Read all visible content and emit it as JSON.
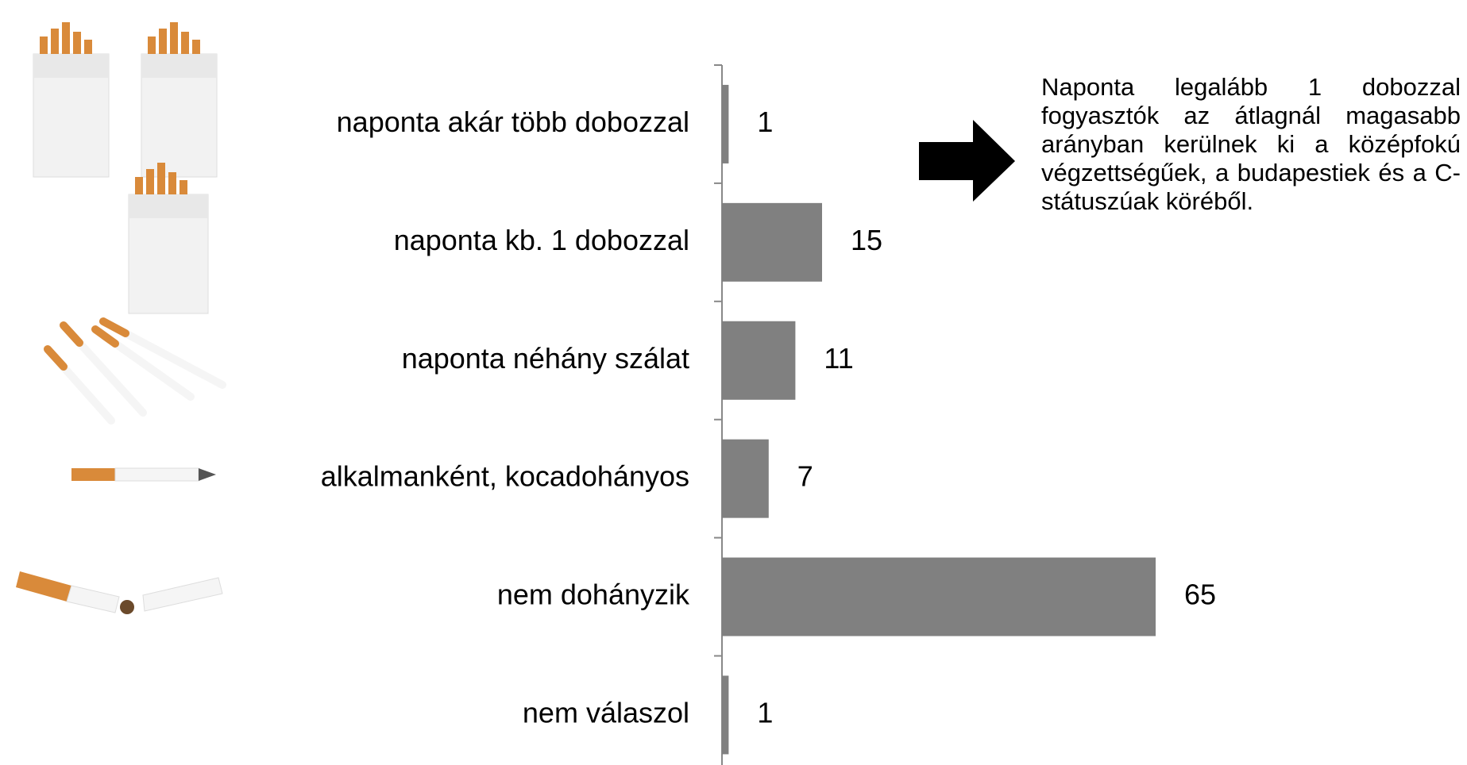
{
  "chart_data": {
    "type": "hbar",
    "categories": [
      "naponta akár több dobozzal",
      "naponta kb. 1 dobozzal",
      "naponta néhány szálat",
      "alkalmanként, kocadohányos",
      "nem dohányzik",
      "nem válaszol"
    ],
    "values": [
      1,
      15,
      11,
      7,
      65,
      1
    ],
    "color": "#808080",
    "annotation": "Naponta legalább 1 dobozzal fogyasztók az átlagnál magasabb arányban kerülnek ki a középfokú végzettségűek, a budapestiek és a C-státuszúak köréből."
  }
}
